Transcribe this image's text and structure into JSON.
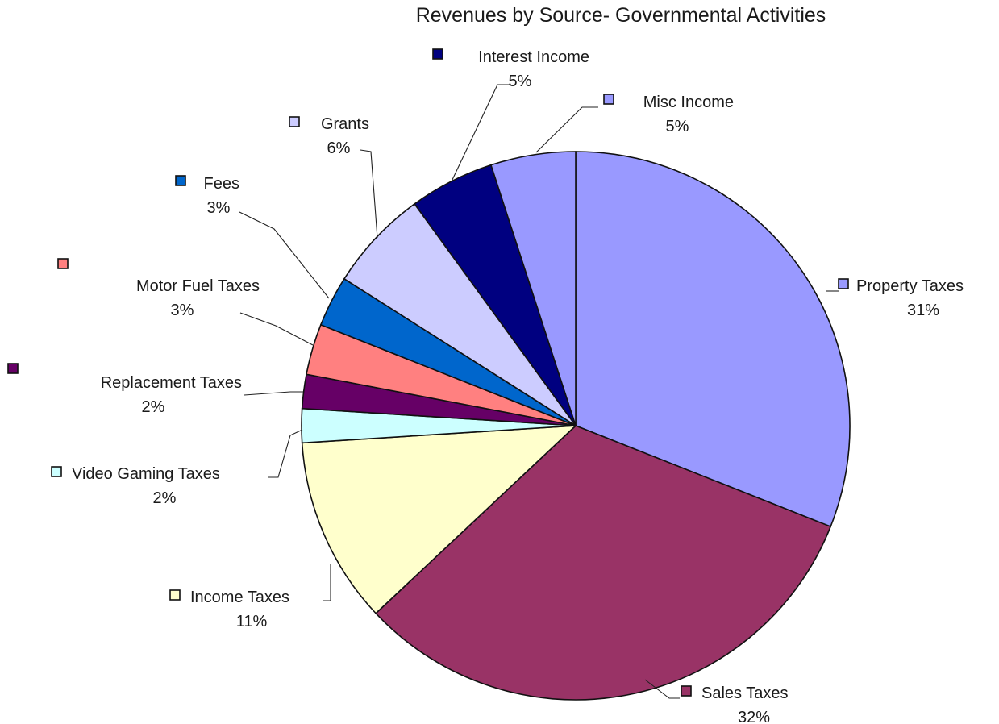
{
  "chart_data": {
    "type": "pie",
    "title": "Revenues by Source- Governmental Activities",
    "start_angle_deg": 0,
    "direction": "clockwise",
    "slices": [
      {
        "label": "Property Taxes",
        "value": 31,
        "value_label": "31%",
        "color": "#9999ff"
      },
      {
        "label": "Sales Taxes",
        "value": 32,
        "value_label": "32%",
        "color": "#993366"
      },
      {
        "label": "Income Taxes",
        "value": 11,
        "value_label": "11%",
        "color": "#ffffcc"
      },
      {
        "label": "Video Gaming Taxes",
        "value": 2,
        "value_label": "2%",
        "color": "#ccffff"
      },
      {
        "label": "Replacement Taxes",
        "value": 2,
        "value_label": "2%",
        "color": "#660066"
      },
      {
        "label": "Motor Fuel Taxes",
        "value": 3,
        "value_label": "3%",
        "color": "#ff8080"
      },
      {
        "label": "Fees",
        "value": 3,
        "value_label": "3%",
        "color": "#0066cc"
      },
      {
        "label": "Grants",
        "value": 6,
        "value_label": "6%",
        "color": "#ccccff"
      },
      {
        "label": "Interest Income",
        "value": 5,
        "value_label": "5%",
        "color": "#000080"
      },
      {
        "label": "Misc Income",
        "value": 5,
        "value_label": "5%",
        "color": "#9999ff"
      }
    ]
  }
}
